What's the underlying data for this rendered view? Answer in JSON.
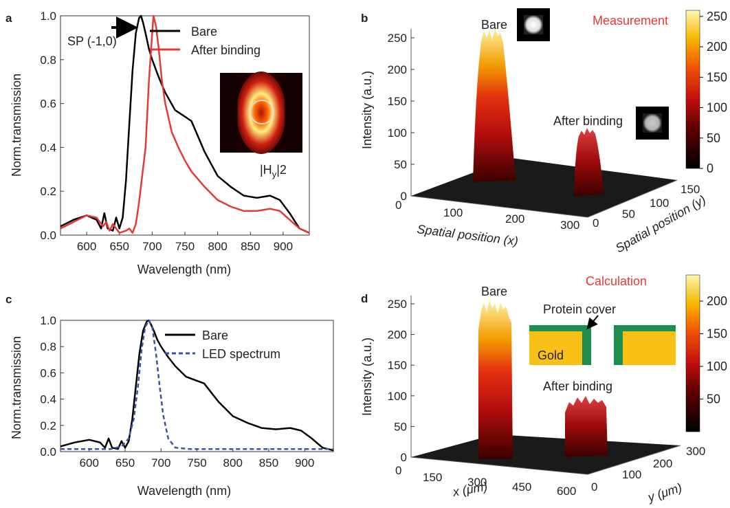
{
  "panel_labels": {
    "a": "a",
    "b": "b",
    "c": "c",
    "d": "d"
  },
  "panel_a": {
    "ylabel": "Norm.transmission",
    "xlabel": "Wavelength (nm)",
    "arrow_text": "SP (-1,0)",
    "inset_label": "|H",
    "inset_sub": "y",
    "inset_exp": "|2"
  },
  "panel_b": {
    "title": "Measurement",
    "zlabel": "Intensity (a.u.)",
    "xlabel": "Spatial position (x)",
    "ylabel": "Spatial position (y)",
    "label_bare": "Bare",
    "label_after": "After binding",
    "colorbar_ticks": [
      "0",
      "50",
      "100",
      "150",
      "200",
      "250"
    ]
  },
  "panel_c": {
    "ylabel": "Norm.transmission",
    "xlabel": "Wavelength (nm)"
  },
  "panel_d": {
    "title": "Calculation",
    "zlabel": "Intensity (a.u.)",
    "xlabel": "x (μm)",
    "ylabel": "y (μm)",
    "label_bare": "Bare",
    "label_after": "After binding",
    "protein_label": "Protein cover",
    "gold_label": "Gold",
    "colorbar_ticks": [
      "50",
      "100",
      "150",
      "200"
    ]
  },
  "colors": {
    "bare": "#000000",
    "after": "#e53935",
    "led": "#3f51a5",
    "gold": "#f9c016",
    "protein": "#1e8e4e",
    "accent_red": "#e53935"
  },
  "chart_data": [
    {
      "type": "line",
      "panel": "a",
      "xlabel": "Wavelength (nm)",
      "ylabel": "Norm.transmission",
      "xlim": [
        560,
        940
      ],
      "ylim": [
        0,
        1.0
      ],
      "xticks": [
        600,
        650,
        700,
        750,
        800,
        850,
        900
      ],
      "yticks": [
        0.0,
        0.2,
        0.4,
        0.6,
        0.8,
        1.0
      ],
      "series": [
        {
          "name": "Bare",
          "color": "#000000",
          "x": [
            560,
            580,
            600,
            615,
            622,
            627,
            632,
            640,
            645,
            650,
            655,
            660,
            665,
            670,
            675,
            680,
            683,
            686,
            690,
            695,
            700,
            710,
            720,
            735,
            750,
            760,
            780,
            800,
            820,
            840,
            860,
            880,
            895,
            910,
            925,
            940
          ],
          "y": [
            0.04,
            0.07,
            0.09,
            0.07,
            0.03,
            0.1,
            0.03,
            0.02,
            0.08,
            0.03,
            0.08,
            0.25,
            0.5,
            0.75,
            0.92,
            0.99,
            1.0,
            0.97,
            0.92,
            0.85,
            0.8,
            0.72,
            0.65,
            0.57,
            0.54,
            0.52,
            0.38,
            0.27,
            0.22,
            0.18,
            0.17,
            0.18,
            0.16,
            0.1,
            0.03,
            0.01
          ]
        },
        {
          "name": "After binding",
          "color": "#e53935",
          "x": [
            560,
            580,
            600,
            615,
            625,
            630,
            635,
            640,
            645,
            650,
            660,
            665,
            670,
            675,
            680,
            690,
            695,
            700,
            702,
            706,
            710,
            715,
            720,
            730,
            740,
            750,
            760,
            780,
            800,
            820,
            840,
            860,
            880,
            895,
            910,
            925,
            940
          ],
          "y": [
            0.03,
            0.06,
            0.09,
            0.08,
            0.04,
            0.06,
            0.02,
            0.05,
            0.03,
            0.01,
            0.02,
            0.03,
            0.01,
            0.05,
            0.15,
            0.4,
            0.7,
            0.92,
            1.0,
            0.95,
            0.85,
            0.7,
            0.6,
            0.47,
            0.4,
            0.34,
            0.29,
            0.22,
            0.16,
            0.13,
            0.11,
            0.11,
            0.12,
            0.11,
            0.07,
            0.03,
            0.01
          ]
        }
      ]
    },
    {
      "type": "surface",
      "panel": "b",
      "title": "Measurement",
      "zlabel": "Intensity (a.u.)",
      "xlabel": "Spatial position (x)",
      "ylabel": "Spatial position (y)",
      "zlim": [
        0,
        250
      ],
      "xticks": [
        0,
        100,
        200,
        300
      ],
      "yticks": [
        0,
        50,
        100,
        150
      ],
      "zticks": [
        0,
        50,
        100,
        150,
        200,
        250
      ],
      "peaks": [
        {
          "name": "Bare",
          "peak_intensity": 250
        },
        {
          "name": "After binding",
          "peak_intensity": 95
        }
      ]
    },
    {
      "type": "line",
      "panel": "c",
      "xlabel": "Wavelength (nm)",
      "ylabel": "Norm.transmission",
      "xlim": [
        560,
        940
      ],
      "ylim": [
        0,
        1.0
      ],
      "xticks": [
        600,
        650,
        700,
        750,
        800,
        850,
        900
      ],
      "yticks": [
        0.0,
        0.2,
        0.4,
        0.6,
        0.8,
        1.0
      ],
      "series": [
        {
          "name": "Bare",
          "color": "#000000",
          "dash": false,
          "x": [
            560,
            580,
            600,
            615,
            622,
            627,
            632,
            640,
            645,
            650,
            655,
            660,
            665,
            670,
            675,
            680,
            683,
            686,
            690,
            695,
            700,
            710,
            720,
            735,
            750,
            760,
            780,
            800,
            820,
            840,
            860,
            880,
            895,
            910,
            925,
            940
          ],
          "y": [
            0.04,
            0.07,
            0.09,
            0.07,
            0.03,
            0.1,
            0.03,
            0.02,
            0.08,
            0.03,
            0.08,
            0.25,
            0.5,
            0.75,
            0.92,
            0.99,
            1.0,
            0.97,
            0.92,
            0.85,
            0.8,
            0.72,
            0.65,
            0.57,
            0.54,
            0.52,
            0.38,
            0.27,
            0.22,
            0.18,
            0.17,
            0.18,
            0.16,
            0.1,
            0.03,
            0.01
          ]
        },
        {
          "name": "LED spectrum",
          "color": "#3f51a5",
          "dash": true,
          "x": [
            560,
            600,
            630,
            645,
            655,
            662,
            668,
            673,
            678,
            683,
            688,
            693,
            698,
            703,
            710,
            720,
            740,
            800,
            900,
            940
          ],
          "y": [
            0.02,
            0.02,
            0.02,
            0.04,
            0.1,
            0.25,
            0.5,
            0.78,
            0.95,
            1.0,
            0.94,
            0.75,
            0.5,
            0.28,
            0.1,
            0.03,
            0.02,
            0.02,
            0.02,
            0.02
          ]
        }
      ]
    },
    {
      "type": "surface",
      "panel": "d",
      "title": "Calculation",
      "zlabel": "Intensity (a.u.)",
      "xlabel": "x (μm)",
      "ylabel": "y (μm)",
      "zlim": [
        0,
        250
      ],
      "xticks": [
        0,
        150,
        300,
        450,
        600
      ],
      "yticks": [
        0,
        100,
        200,
        300
      ],
      "zticks": [
        0,
        50,
        100,
        150,
        200,
        250
      ],
      "peaks": [
        {
          "name": "Bare",
          "peak_intensity": 240
        },
        {
          "name": "After binding",
          "peak_intensity": 95
        }
      ]
    }
  ]
}
